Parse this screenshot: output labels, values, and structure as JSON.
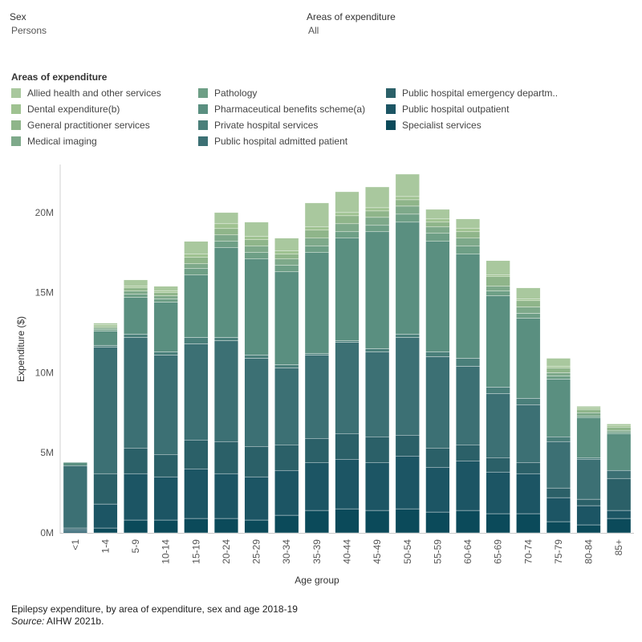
{
  "filters": {
    "sex": {
      "label": "Sex",
      "value": "Persons"
    },
    "areas": {
      "label": "Areas of expenditure",
      "value": "All"
    }
  },
  "legend": {
    "title": "Areas of expenditure",
    "items": [
      {
        "label": "Allied health and other services",
        "color": "#a9c89e"
      },
      {
        "label": "Dental expenditure(b)",
        "color": "#9fc291"
      },
      {
        "label": "General practitioner services",
        "color": "#8fb58a"
      },
      {
        "label": "Medical imaging",
        "color": "#7ea98a"
      },
      {
        "label": "Pathology",
        "color": "#6e9f86"
      },
      {
        "label": "Pharmaceutical benefits scheme(a)",
        "color": "#5a8f80"
      },
      {
        "label": "Private hospital services",
        "color": "#4a7f7a"
      },
      {
        "label": "Public hospital admitted patient",
        "color": "#3c7074"
      },
      {
        "label": "Public hospital emergency departm..",
        "color": "#2b6068"
      },
      {
        "label": "Public hospital outpatient",
        "color": "#1c5564"
      },
      {
        "label": "Specialist services",
        "color": "#0b4a5a"
      }
    ]
  },
  "caption": {
    "title": "Epilepsy expenditure, by area of expenditure, sex and age 2018-19",
    "source_label": "Source:",
    "source_text": " AIHW 2021b."
  },
  "chart_data": {
    "type": "bar",
    "stacked": true,
    "xlabel": "Age group",
    "ylabel": "Expenditure ($)",
    "ylim": [
      0,
      23000000
    ],
    "yticks": [
      0,
      5000000,
      10000000,
      15000000,
      20000000
    ],
    "ytick_labels": [
      "0M",
      "5M",
      "10M",
      "15M",
      "20M"
    ],
    "categories": [
      "<1",
      "1-4",
      "5-9",
      "10-14",
      "15-19",
      "20-24",
      "25-29",
      "30-34",
      "35-39",
      "40-44",
      "45-49",
      "50-54",
      "55-59",
      "60-64",
      "65-69",
      "70-74",
      "75-79",
      "80-84",
      "85+"
    ],
    "series": [
      {
        "name": "Specialist services",
        "color": "#0b4a5a",
        "values": [
          100000,
          300000,
          800000,
          800000,
          900000,
          900000,
          800000,
          1100000,
          1400000,
          1500000,
          1400000,
          1500000,
          1300000,
          1400000,
          1200000,
          1200000,
          700000,
          500000,
          900000
        ]
      },
      {
        "name": "Public hospital outpatient",
        "color": "#1c5564",
        "values": [
          100000,
          1500000,
          2900000,
          2700000,
          3100000,
          2800000,
          2700000,
          2800000,
          3000000,
          3100000,
          3000000,
          3300000,
          2800000,
          3100000,
          2600000,
          2500000,
          1500000,
          1200000,
          500000
        ]
      },
      {
        "name": "Public hospital emergency departm..",
        "color": "#2b6068",
        "values": [
          100000,
          1900000,
          1600000,
          1400000,
          1800000,
          2000000,
          1900000,
          1600000,
          1500000,
          1600000,
          1600000,
          1300000,
          1200000,
          1000000,
          900000,
          700000,
          600000,
          400000,
          2000000
        ]
      },
      {
        "name": "Public hospital admitted patient",
        "color": "#3c7074",
        "values": [
          3900000,
          7900000,
          6900000,
          6200000,
          6000000,
          6300000,
          5500000,
          4800000,
          5200000,
          5700000,
          5300000,
          6100000,
          5700000,
          4900000,
          4000000,
          3600000,
          2900000,
          2500000,
          500000
        ]
      },
      {
        "name": "Private hospital services",
        "color": "#4a7f7a",
        "values": [
          0,
          100000,
          200000,
          200000,
          400000,
          200000,
          200000,
          200000,
          100000,
          100000,
          200000,
          200000,
          300000,
          500000,
          400000,
          400000,
          300000,
          100000,
          0
        ]
      },
      {
        "name": "Pharmaceutical benefits scheme(a)",
        "color": "#5a8f80",
        "values": [
          200000,
          900000,
          2300000,
          3100000,
          3900000,
          5600000,
          6000000,
          5800000,
          6300000,
          6400000,
          7300000,
          7000000,
          6900000,
          6500000,
          5700000,
          5000000,
          3600000,
          2500000,
          2300000
        ]
      },
      {
        "name": "Pathology",
        "color": "#6e9f86",
        "values": [
          0,
          100000,
          200000,
          200000,
          400000,
          400000,
          400000,
          400000,
          400000,
          400000,
          400000,
          500000,
          500000,
          500000,
          300000,
          300000,
          200000,
          100000,
          100000
        ]
      },
      {
        "name": "Medical imaging",
        "color": "#7ea98a",
        "values": [
          0,
          100000,
          200000,
          200000,
          300000,
          400000,
          400000,
          400000,
          500000,
          500000,
          500000,
          500000,
          400000,
          500000,
          300000,
          400000,
          200000,
          200000,
          100000
        ]
      },
      {
        "name": "General practitioner services",
        "color": "#8fb58a",
        "values": [
          0,
          100000,
          200000,
          200000,
          400000,
          400000,
          400000,
          300000,
          500000,
          500000,
          400000,
          400000,
          300000,
          400000,
          600000,
          400000,
          300000,
          200000,
          200000
        ]
      },
      {
        "name": "Dental expenditure(b)",
        "color": "#9fc291",
        "values": [
          0,
          100000,
          100000,
          100000,
          200000,
          300000,
          200000,
          200000,
          200000,
          200000,
          200000,
          200000,
          200000,
          200000,
          100000,
          100000,
          100000,
          100000,
          100000
        ]
      },
      {
        "name": "Allied health and other services",
        "color": "#a9c89e",
        "values": [
          0,
          100000,
          400000,
          300000,
          800000,
          700000,
          900000,
          800000,
          1500000,
          1300000,
          1300000,
          1400000,
          600000,
          600000,
          900000,
          700000,
          500000,
          100000,
          100000
        ]
      }
    ]
  }
}
